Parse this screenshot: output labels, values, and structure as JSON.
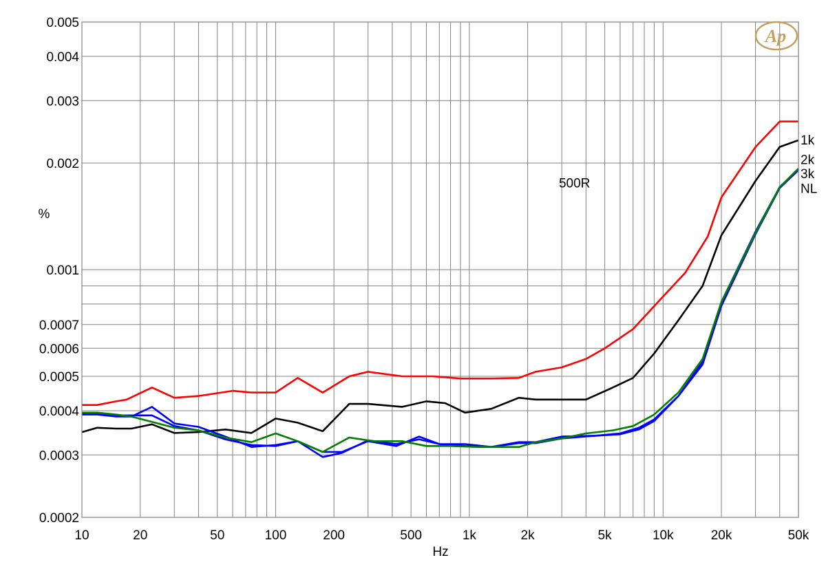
{
  "chart_data": {
    "type": "line",
    "title": "",
    "xlabel": "Hz",
    "ylabel": "%",
    "x_scale": "log",
    "y_scale": "log",
    "xlim": [
      10,
      50000
    ],
    "ylim": [
      0.0002,
      0.005
    ],
    "grid": true,
    "x_ticks": [
      {
        "value": 10,
        "label": "10"
      },
      {
        "value": 20,
        "label": "20"
      },
      {
        "value": 50,
        "label": "50"
      },
      {
        "value": 100,
        "label": "100"
      },
      {
        "value": 200,
        "label": "200"
      },
      {
        "value": 500,
        "label": "500"
      },
      {
        "value": 1000,
        "label": "1k"
      },
      {
        "value": 2000,
        "label": "2k"
      },
      {
        "value": 5000,
        "label": "5k"
      },
      {
        "value": 10000,
        "label": "10k"
      },
      {
        "value": 20000,
        "label": "20k"
      },
      {
        "value": 50000,
        "label": "50k"
      }
    ],
    "y_ticks": [
      {
        "value": 0.005,
        "label": "0.005"
      },
      {
        "value": 0.004,
        "label": "0.004"
      },
      {
        "value": 0.003,
        "label": "0.003"
      },
      {
        "value": 0.002,
        "label": "0.002"
      },
      {
        "value": 0.001,
        "label": "0.001"
      },
      {
        "value": 0.0007,
        "label": "0.0007"
      },
      {
        "value": 0.0006,
        "label": "0.0006"
      },
      {
        "value": 0.0005,
        "label": "0.0005"
      },
      {
        "value": 0.0004,
        "label": "0.0004"
      },
      {
        "value": 0.0003,
        "label": "0.0003"
      },
      {
        "value": 0.0002,
        "label": "0.0002"
      }
    ],
    "y_minor_grid": [
      0.0009,
      0.0008
    ],
    "series": [
      {
        "name": "500R",
        "color": "#ff0000",
        "points": [
          [
            10,
            0.000415
          ],
          [
            12,
            0.000415
          ],
          [
            15,
            0.000425
          ],
          [
            17,
            0.00043
          ],
          [
            23,
            0.000465
          ],
          [
            30,
            0.000435
          ],
          [
            40,
            0.00044
          ],
          [
            60,
            0.000455
          ],
          [
            75,
            0.00045
          ],
          [
            100,
            0.00045
          ],
          [
            130,
            0.000495
          ],
          [
            175,
            0.00045
          ],
          [
            240,
            0.0005
          ],
          [
            300,
            0.000515
          ],
          [
            450,
            0.0005
          ],
          [
            650,
            0.0005
          ],
          [
            900,
            0.000493
          ],
          [
            1300,
            0.000493
          ],
          [
            1800,
            0.000495
          ],
          [
            2200,
            0.000515
          ],
          [
            3000,
            0.00053
          ],
          [
            4000,
            0.00056
          ],
          [
            5000,
            0.0006
          ],
          [
            7000,
            0.00068
          ],
          [
            10000,
            0.00084
          ],
          [
            13000,
            0.00098
          ],
          [
            17000,
            0.00124
          ],
          [
            20000,
            0.0016
          ],
          [
            30000,
            0.00222
          ],
          [
            40000,
            0.00262
          ],
          [
            50000,
            0.00262
          ]
        ]
      },
      {
        "name": "1k",
        "color": "#000000",
        "points": [
          [
            10,
            0.000348
          ],
          [
            12,
            0.000358
          ],
          [
            15,
            0.000356
          ],
          [
            18,
            0.000356
          ],
          [
            23,
            0.000366
          ],
          [
            30,
            0.000346
          ],
          [
            40,
            0.000348
          ],
          [
            55,
            0.000354
          ],
          [
            75,
            0.000346
          ],
          [
            100,
            0.00038
          ],
          [
            130,
            0.00037
          ],
          [
            175,
            0.00035
          ],
          [
            240,
            0.000418
          ],
          [
            300,
            0.000418
          ],
          [
            450,
            0.00041
          ],
          [
            600,
            0.000425
          ],
          [
            750,
            0.00042
          ],
          [
            950,
            0.000395
          ],
          [
            1300,
            0.000405
          ],
          [
            1800,
            0.000435
          ],
          [
            2200,
            0.00043
          ],
          [
            3000,
            0.00043
          ],
          [
            4000,
            0.00043
          ],
          [
            5500,
            0.000465
          ],
          [
            7000,
            0.000495
          ],
          [
            9000,
            0.00058
          ],
          [
            12000,
            0.00072
          ],
          [
            16000,
            0.0009
          ],
          [
            20000,
            0.00125
          ],
          [
            30000,
            0.00178
          ],
          [
            40000,
            0.00222
          ],
          [
            50000,
            0.00232
          ]
        ]
      },
      {
        "name": "2k",
        "color": "#0000ff",
        "points": [
          [
            10,
            0.00039
          ],
          [
            12,
            0.00039
          ],
          [
            15,
            0.000385
          ],
          [
            18,
            0.000385
          ],
          [
            23,
            0.00041
          ],
          [
            30,
            0.000368
          ],
          [
            40,
            0.00036
          ],
          [
            55,
            0.000338
          ],
          [
            75,
            0.000316
          ],
          [
            100,
            0.00032
          ],
          [
            130,
            0.000328
          ],
          [
            175,
            0.000306
          ],
          [
            220,
            0.000306
          ],
          [
            300,
            0.000328
          ],
          [
            420,
            0.000318
          ],
          [
            550,
            0.000338
          ],
          [
            700,
            0.000322
          ],
          [
            950,
            0.000322
          ],
          [
            1300,
            0.000316
          ],
          [
            1800,
            0.000326
          ],
          [
            2200,
            0.000326
          ],
          [
            3000,
            0.000338
          ],
          [
            4500,
            0.00034
          ],
          [
            6000,
            0.000345
          ],
          [
            7500,
            0.000358
          ],
          [
            9000,
            0.000378
          ],
          [
            12000,
            0.00044
          ],
          [
            16000,
            0.00055
          ],
          [
            20000,
            0.00081
          ],
          [
            30000,
            0.00128
          ],
          [
            40000,
            0.00171
          ],
          [
            50000,
            0.00192
          ]
        ]
      },
      {
        "name": "3k",
        "color": "#0000ff",
        "points": [
          [
            10,
            0.000392
          ],
          [
            12,
            0.000392
          ],
          [
            15,
            0.000388
          ],
          [
            18,
            0.000388
          ],
          [
            23,
            0.000388
          ],
          [
            30,
            0.000362
          ],
          [
            40,
            0.000352
          ],
          [
            55,
            0.000332
          ],
          [
            75,
            0.00032
          ],
          [
            100,
            0.000318
          ],
          [
            130,
            0.000328
          ],
          [
            175,
            0.000296
          ],
          [
            220,
            0.000304
          ],
          [
            300,
            0.00033
          ],
          [
            420,
            0.000322
          ],
          [
            550,
            0.000332
          ],
          [
            700,
            0.000322
          ],
          [
            950,
            0.000318
          ],
          [
            1300,
            0.000316
          ],
          [
            1800,
            0.000324
          ],
          [
            2200,
            0.000324
          ],
          [
            3000,
            0.000334
          ],
          [
            4500,
            0.00034
          ],
          [
            6000,
            0.000343
          ],
          [
            7500,
            0.000354
          ],
          [
            9000,
            0.000374
          ],
          [
            12000,
            0.00044
          ],
          [
            16000,
            0.00054
          ],
          [
            20000,
            0.00079
          ],
          [
            30000,
            0.00126
          ],
          [
            40000,
            0.0017
          ],
          [
            50000,
            0.00191
          ]
        ]
      },
      {
        "name": "NL",
        "color": "#008000",
        "points": [
          [
            10,
            0.000395
          ],
          [
            12,
            0.000395
          ],
          [
            15,
            0.00039
          ],
          [
            18,
            0.000385
          ],
          [
            23,
            0.000372
          ],
          [
            30,
            0.000358
          ],
          [
            40,
            0.000352
          ],
          [
            55,
            0.000336
          ],
          [
            75,
            0.000326
          ],
          [
            100,
            0.000345
          ],
          [
            130,
            0.000328
          ],
          [
            175,
            0.000306
          ],
          [
            240,
            0.000336
          ],
          [
            320,
            0.000328
          ],
          [
            450,
            0.000328
          ],
          [
            600,
            0.000318
          ],
          [
            800,
            0.000318
          ],
          [
            1100,
            0.000316
          ],
          [
            1400,
            0.000316
          ],
          [
            1800,
            0.000316
          ],
          [
            2200,
            0.000326
          ],
          [
            3000,
            0.000334
          ],
          [
            4000,
            0.000345
          ],
          [
            5500,
            0.000352
          ],
          [
            7000,
            0.000362
          ],
          [
            9000,
            0.00039
          ],
          [
            12000,
            0.00045
          ],
          [
            16000,
            0.00056
          ],
          [
            20000,
            0.00081
          ],
          [
            30000,
            0.00127
          ],
          [
            40000,
            0.00171
          ],
          [
            50000,
            0.00193
          ]
        ]
      }
    ],
    "annotations": [
      {
        "text": "500R",
        "x": 2900,
        "y": 0.00176,
        "anchor": "start"
      },
      {
        "text": "1k",
        "x": 50000,
        "y": 0.00233,
        "anchor": "outside-right"
      },
      {
        "text": "2k",
        "x": 50000,
        "y": 0.00205,
        "anchor": "outside-right"
      },
      {
        "text": "3k",
        "x": 50000,
        "y": 0.00187,
        "anchor": "outside-right"
      },
      {
        "text": "NL",
        "x": 50000,
        "y": 0.0017,
        "anchor": "outside-right"
      }
    ],
    "logo": {
      "text": "Ap",
      "color": "#c4a060"
    }
  }
}
